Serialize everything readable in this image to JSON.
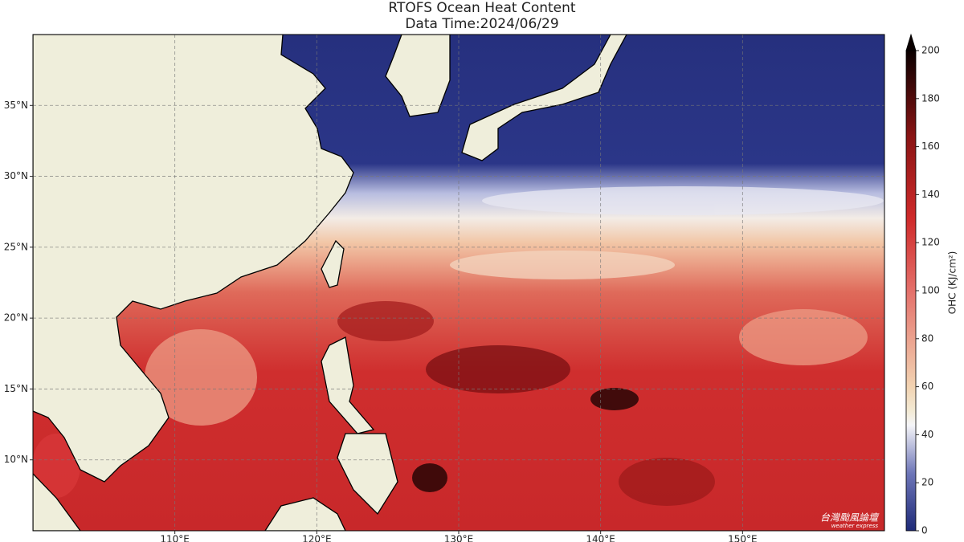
{
  "chart_data": {
    "type": "map",
    "title": "RTOFS Ocean Heat Content",
    "subtitle": "Data Time:2024/06/29",
    "xlim": [
      100,
      160
    ],
    "ylim": [
      5,
      40
    ],
    "xticks": [
      {
        "value": 110,
        "label": "110°E"
      },
      {
        "value": 120,
        "label": "120°E"
      },
      {
        "value": 130,
        "label": "130°E"
      },
      {
        "value": 140,
        "label": "140°E"
      },
      {
        "value": 150,
        "label": "150°E"
      }
    ],
    "yticks": [
      {
        "value": 10,
        "label": "10°N"
      },
      {
        "value": 15,
        "label": "15°N"
      },
      {
        "value": 20,
        "label": "20°N"
      },
      {
        "value": 25,
        "label": "25°N"
      },
      {
        "value": 30,
        "label": "30°N"
      },
      {
        "value": 35,
        "label": "35°N"
      }
    ],
    "grid": true,
    "colorbar": {
      "label": "OHC (KJ/cm²)",
      "lim": [
        0,
        200
      ],
      "ticks": [
        0,
        20,
        40,
        60,
        80,
        100,
        120,
        140,
        160,
        180,
        200
      ]
    },
    "watermark": "台灣颱風論壇",
    "watermark_sub": "weather express"
  }
}
